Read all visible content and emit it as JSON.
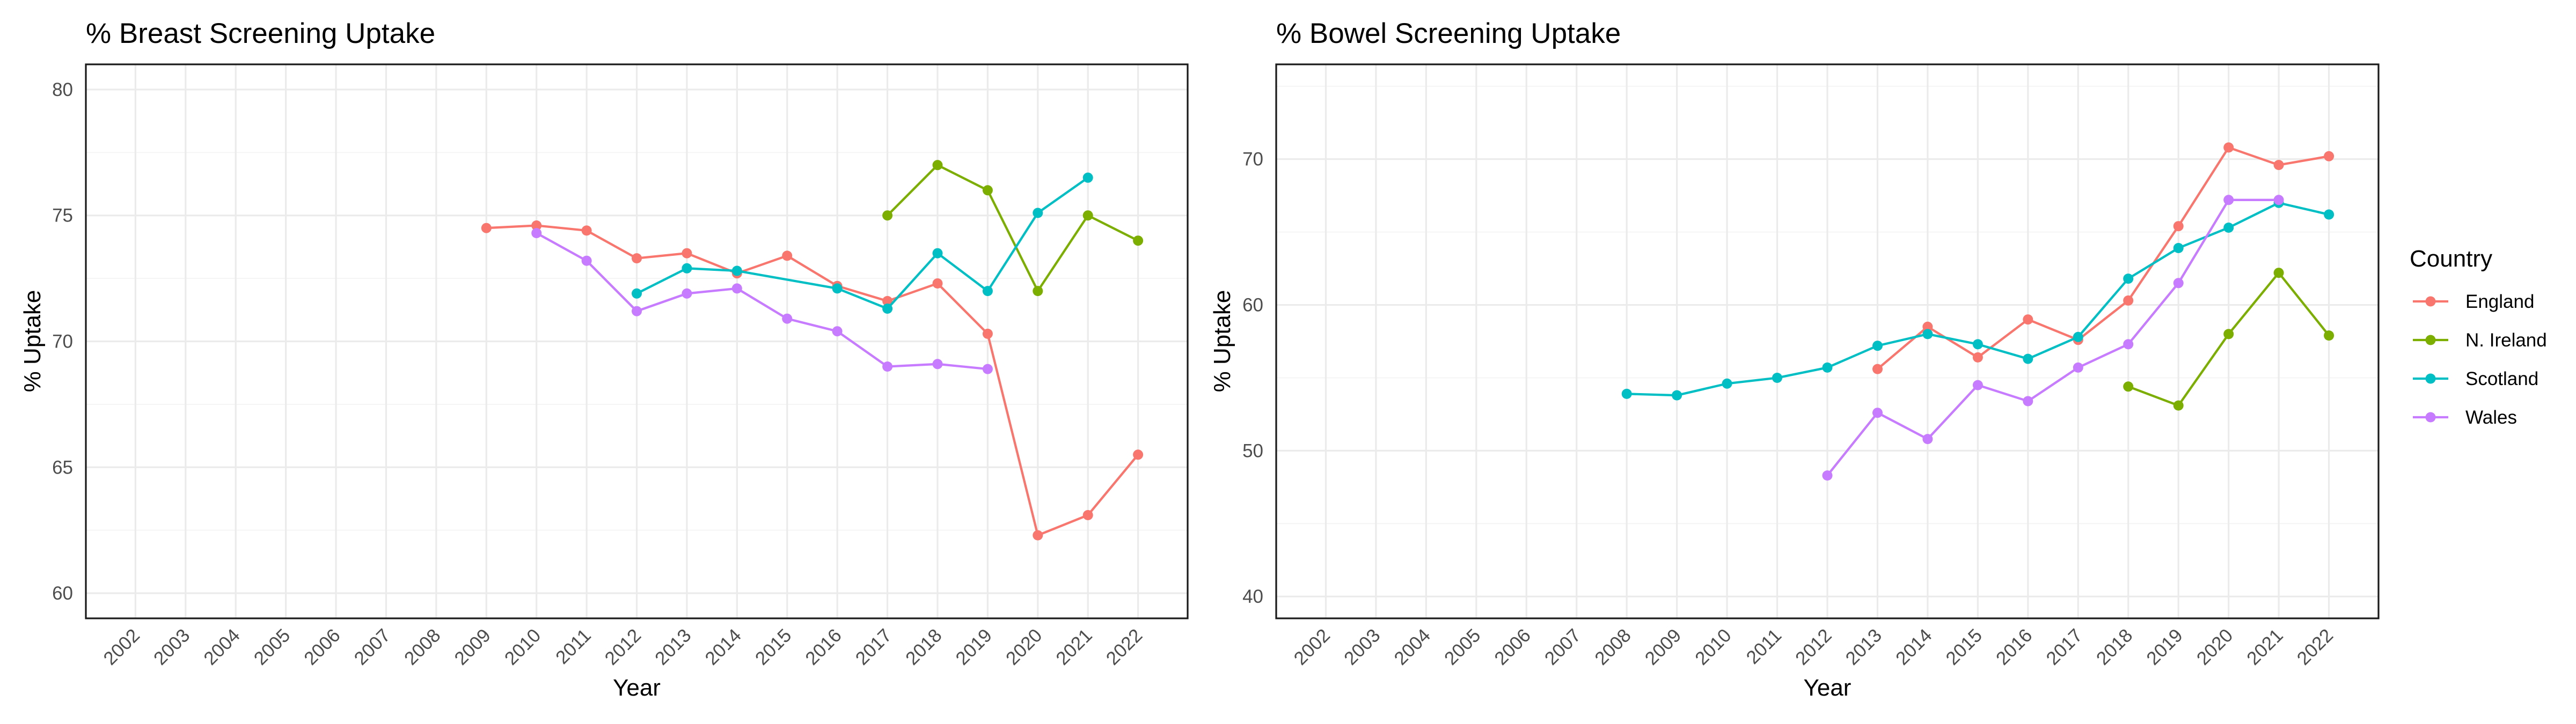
{
  "colors": {
    "England": "#F8766D",
    "N. Ireland": "#7CAE00",
    "Scotland": "#00BFC4",
    "Wales": "#C77CFF"
  },
  "legend": {
    "title": "Country",
    "placement": "right",
    "entries": [
      "England",
      "N. Ireland",
      "Scotland",
      "Wales"
    ]
  },
  "chart_data": [
    {
      "type": "line",
      "title": "% Breast Screening Uptake",
      "xlabel": "Year",
      "ylabel": "% Uptake",
      "categories": [
        "2002",
        "2003",
        "2004",
        "2005",
        "2006",
        "2007",
        "2008",
        "2009",
        "2010",
        "2011",
        "2012",
        "2013",
        "2014",
        "2015",
        "2016",
        "2017",
        "2018",
        "2019",
        "2020",
        "2021",
        "2022"
      ],
      "ylim": [
        59,
        81
      ],
      "yticks": [
        60,
        65,
        70,
        75,
        80
      ],
      "grid": true,
      "series": [
        {
          "name": "England",
          "points": [
            [
              "2009",
              74.5
            ],
            [
              "2010",
              74.6
            ],
            [
              "2011",
              74.4
            ],
            [
              "2012",
              73.3
            ],
            [
              "2013",
              73.5
            ],
            [
              "2014",
              72.7
            ],
            [
              "2015",
              73.4
            ],
            [
              "2016",
              72.2
            ],
            [
              "2017",
              71.6
            ],
            [
              "2018",
              72.3
            ],
            [
              "2019",
              70.3
            ],
            [
              "2020",
              62.3
            ],
            [
              "2021",
              63.1
            ],
            [
              "2022",
              65.5
            ]
          ]
        },
        {
          "name": "N. Ireland",
          "points": [
            [
              "2017",
              75.0
            ],
            [
              "2018",
              77.0
            ],
            [
              "2019",
              76.0
            ],
            [
              "2020",
              72.0
            ],
            [
              "2021",
              75.0
            ],
            [
              "2022",
              74.0
            ]
          ]
        },
        {
          "name": "Scotland",
          "points": [
            [
              "2012",
              71.9
            ],
            [
              "2013",
              72.9
            ],
            [
              "2014",
              72.8
            ],
            [
              "2016",
              72.1
            ],
            [
              "2017",
              71.3
            ],
            [
              "2018",
              73.5
            ],
            [
              "2019",
              72.0
            ],
            [
              "2020",
              75.1
            ],
            [
              "2021",
              76.5
            ]
          ]
        },
        {
          "name": "Wales",
          "points": [
            [
              "2010",
              74.3
            ],
            [
              "2011",
              73.2
            ],
            [
              "2012",
              71.2
            ],
            [
              "2013",
              71.9
            ],
            [
              "2014",
              72.1
            ],
            [
              "2015",
              70.9
            ],
            [
              "2016",
              70.4
            ],
            [
              "2017",
              69.0
            ],
            [
              "2018",
              69.1
            ],
            [
              "2019",
              68.9
            ]
          ]
        }
      ]
    },
    {
      "type": "line",
      "title": "% Bowel Screening Uptake",
      "xlabel": "Year",
      "ylabel": "% Uptake",
      "categories": [
        "2002",
        "2003",
        "2004",
        "2005",
        "2006",
        "2007",
        "2008",
        "2009",
        "2010",
        "2011",
        "2012",
        "2013",
        "2014",
        "2015",
        "2016",
        "2017",
        "2018",
        "2019",
        "2020",
        "2021",
        "2022"
      ],
      "ylim": [
        38.5,
        76.5
      ],
      "yticks": [
        40,
        50,
        60,
        70
      ],
      "grid": true,
      "series": [
        {
          "name": "England",
          "points": [
            [
              "2013",
              55.6
            ],
            [
              "2014",
              58.5
            ],
            [
              "2015",
              56.4
            ],
            [
              "2016",
              59.0
            ],
            [
              "2017",
              57.6
            ],
            [
              "2018",
              60.3
            ],
            [
              "2019",
              65.4
            ],
            [
              "2020",
              70.8
            ],
            [
              "2021",
              69.6
            ],
            [
              "2022",
              70.2
            ]
          ]
        },
        {
          "name": "N. Ireland",
          "points": [
            [
              "2018",
              54.4
            ],
            [
              "2019",
              53.1
            ],
            [
              "2020",
              58.0
            ],
            [
              "2021",
              62.2
            ],
            [
              "2022",
              57.9
            ]
          ]
        },
        {
          "name": "Scotland",
          "points": [
            [
              "2008",
              53.9
            ],
            [
              "2009",
              53.8
            ],
            [
              "2010",
              54.6
            ],
            [
              "2011",
              55.0
            ],
            [
              "2012",
              55.7
            ],
            [
              "2013",
              57.2
            ],
            [
              "2014",
              58.0
            ],
            [
              "2015",
              57.3
            ],
            [
              "2016",
              56.3
            ],
            [
              "2017",
              57.8
            ],
            [
              "2018",
              61.8
            ],
            [
              "2019",
              63.9
            ],
            [
              "2020",
              65.3
            ],
            [
              "2021",
              67.0
            ],
            [
              "2022",
              66.2
            ]
          ]
        },
        {
          "name": "Wales",
          "points": [
            [
              "2012",
              48.3
            ],
            [
              "2013",
              52.6
            ],
            [
              "2014",
              50.8
            ],
            [
              "2015",
              54.5
            ],
            [
              "2016",
              53.4
            ],
            [
              "2017",
              55.7
            ],
            [
              "2018",
              57.3
            ],
            [
              "2019",
              61.5
            ],
            [
              "2020",
              67.2
            ],
            [
              "2021",
              67.2
            ]
          ]
        }
      ]
    }
  ]
}
